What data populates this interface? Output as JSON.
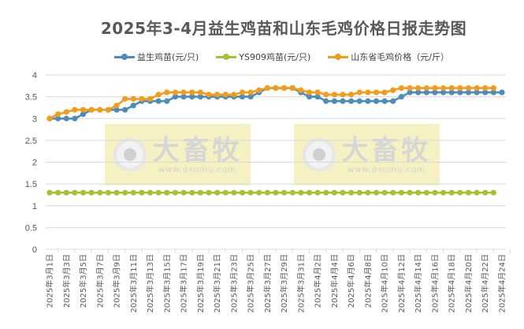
{
  "title": "2025年3-4月益生鸡苗和山东毛鸡价格日报走势图",
  "legend": [
    {
      "label": "益生鸡苗(元/只)",
      "color": "#4A8DB8"
    },
    {
      "label": "YS909鸡苗(元/只)",
      "color": "#A5C234"
    },
    {
      "label": "山东省毛鸡价格（元/斤）",
      "color": "#F39B1A"
    }
  ],
  "watermark": {
    "brand": "大畜牧",
    "url": "www.dxumu.com"
  },
  "chart_data": {
    "type": "line",
    "title": "2025年3-4月益生鸡苗和山东毛鸡价格日报走势图",
    "xlabel": "",
    "ylabel": "",
    "ylim": [
      0,
      4
    ],
    "yticks": [
      "0",
      "0.5",
      "1",
      "1.5",
      "2",
      "2.5",
      "3",
      "3.5",
      "4"
    ],
    "grid": true,
    "legend_position": "top",
    "x_tick_labels": [
      "2025年3月1日",
      "2025年3月3日",
      "2025年3月5日",
      "2025年3月7日",
      "2025年3月9日",
      "2025年3月11日",
      "2025年3月13日",
      "2025年3月15日",
      "2025年3月17日",
      "2025年3月19日",
      "2025年3月21日",
      "2025年3月23日",
      "2025年3月25日",
      "2025年3月27日",
      "2025年3月29日",
      "2025年3月31日",
      "2025年4月2日",
      "2025年4月4日",
      "2025年4月6日",
      "2025年4月8日",
      "2025年4月10日",
      "2025年4月12日",
      "2025年4月14日",
      "2025年4月16日",
      "2025年4月18日",
      "2025年4月20日",
      "2025年4月22日",
      "2025年4月24日"
    ],
    "x_days": [
      "3/1",
      "3/2",
      "3/3",
      "3/4",
      "3/5",
      "3/6",
      "3/7",
      "3/8",
      "3/9",
      "3/10",
      "3/11",
      "3/12",
      "3/13",
      "3/14",
      "3/15",
      "3/16",
      "3/17",
      "3/18",
      "3/19",
      "3/20",
      "3/21",
      "3/22",
      "3/23",
      "3/24",
      "3/25",
      "3/26",
      "3/27",
      "3/28",
      "3/29",
      "3/30",
      "3/31",
      "4/1",
      "4/2",
      "4/3",
      "4/4",
      "4/5",
      "4/6",
      "4/7",
      "4/8",
      "4/9",
      "4/10",
      "4/11",
      "4/12",
      "4/13",
      "4/14",
      "4/15",
      "4/16",
      "4/17",
      "4/18",
      "4/19",
      "4/20",
      "4/21",
      "4/22",
      "4/23",
      "4/24"
    ],
    "series": [
      {
        "name": "益生鸡苗(元/只)",
        "color": "#4A8DB8",
        "values": [
          3.0,
          3.0,
          3.0,
          3.0,
          3.1,
          3.2,
          3.2,
          3.2,
          3.2,
          3.2,
          3.3,
          3.4,
          3.4,
          3.4,
          3.4,
          3.5,
          3.5,
          3.5,
          3.5,
          3.5,
          3.5,
          3.5,
          3.5,
          3.5,
          3.5,
          3.6,
          3.7,
          3.7,
          3.7,
          3.7,
          3.6,
          3.5,
          3.5,
          3.4,
          3.4,
          3.4,
          3.4,
          3.4,
          3.4,
          3.4,
          3.4,
          3.4,
          3.5,
          3.6,
          3.6,
          3.6,
          3.6,
          3.6,
          3.6,
          3.6,
          3.6,
          3.6,
          3.6,
          3.6,
          3.6
        ]
      },
      {
        "name": "YS909鸡苗(元/只)",
        "color": "#A5C234",
        "values": [
          1.3,
          1.3,
          1.3,
          1.3,
          1.3,
          1.3,
          1.3,
          1.3,
          1.3,
          1.3,
          1.3,
          1.3,
          1.3,
          1.3,
          1.3,
          1.3,
          1.3,
          1.3,
          1.3,
          1.3,
          1.3,
          1.3,
          1.3,
          1.3,
          1.3,
          1.3,
          1.3,
          1.3,
          1.3,
          1.3,
          1.3,
          1.3,
          1.3,
          1.3,
          1.3,
          1.3,
          1.3,
          1.3,
          1.3,
          1.3,
          1.3,
          1.3,
          1.3,
          1.3,
          1.3,
          1.3,
          1.3,
          1.3,
          1.3,
          1.3,
          1.3,
          1.3,
          1.3,
          1.3,
          null
        ]
      },
      {
        "name": "山东省毛鸡价格（元/斤）",
        "color": "#F39B1A",
        "values": [
          3.0,
          3.1,
          3.15,
          3.2,
          3.2,
          3.2,
          3.2,
          3.2,
          3.3,
          3.45,
          3.45,
          3.45,
          3.45,
          3.55,
          3.6,
          3.6,
          3.6,
          3.6,
          3.6,
          3.55,
          3.55,
          3.55,
          3.55,
          3.6,
          3.6,
          3.65,
          3.7,
          3.7,
          3.7,
          3.7,
          3.65,
          3.6,
          3.6,
          3.55,
          3.55,
          3.55,
          3.55,
          3.6,
          3.6,
          3.6,
          3.6,
          3.65,
          3.7,
          3.7,
          3.7,
          3.7,
          3.7,
          3.7,
          3.7,
          3.7,
          3.7,
          3.7,
          3.7,
          3.7,
          null
        ]
      }
    ]
  }
}
